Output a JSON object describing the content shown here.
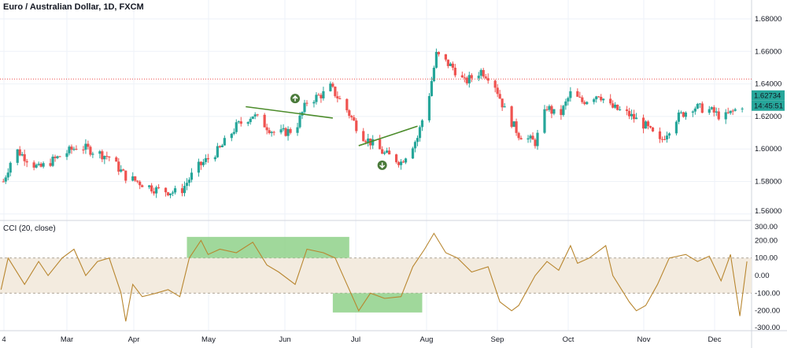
{
  "header": {
    "title": "Euro / Australian Dollar, 1D, FXCM"
  },
  "indicator": {
    "title": "CCI (20, close)"
  },
  "colors": {
    "up": "#26a69a",
    "down": "#ef5350",
    "cci_line": "#b8862f",
    "band_fill": "#f3ebdf",
    "highlight": "#8fd18a",
    "trendline": "#4c8c2b",
    "hline": "#ef5350",
    "arrow": "#4a7a3a",
    "grid": "#eef2f8"
  },
  "price_label": {
    "value": "1.62734",
    "countdown": "14:45:51"
  },
  "chart_data": [
    {
      "type": "candlestick",
      "title": "Euro / Australian Dollar, 1D, FXCM",
      "x_ticks": [
        "4",
        "Mar",
        "Apr",
        "May",
        "Jun",
        "Jul",
        "Aug",
        "Sep",
        "Oct",
        "Nov",
        "Dec"
      ],
      "y_ticks": [
        "1.68000",
        "1.66000",
        "1.64000",
        "1.62000",
        "1.60000",
        "1.58000",
        "1.56000"
      ],
      "ylim": [
        1.555,
        1.688
      ],
      "grid": true,
      "close_path": [
        [
          "Feb 2",
          1.58
        ],
        [
          "Feb 7",
          1.6
        ],
        [
          "Feb 17",
          1.588
        ],
        [
          "Mar 6",
          1.602
        ],
        [
          "Mar 19",
          1.595
        ],
        [
          "Mar 26",
          1.583
        ],
        [
          "Apr 8",
          1.575
        ],
        [
          "Apr 18",
          1.573
        ],
        [
          "Apr 25",
          1.588
        ],
        [
          "May 5",
          1.6
        ],
        [
          "May 12",
          1.614
        ],
        [
          "May 19",
          1.621
        ],
        [
          "May 29",
          1.609
        ],
        [
          "Jun 6",
          1.612
        ],
        [
          "Jun 11",
          1.629
        ],
        [
          "Jun 18",
          1.634
        ],
        [
          "Jun 21",
          1.638
        ],
        [
          "Jun 28",
          1.624
        ],
        [
          "Jul 4",
          1.609
        ],
        [
          "Jul 14",
          1.597
        ],
        [
          "Jul 21",
          1.592
        ],
        [
          "Jul 28",
          1.607
        ],
        [
          "Aug 2",
          1.634
        ],
        [
          "Aug 5",
          1.658
        ],
        [
          "Aug 12",
          1.65
        ],
        [
          "Aug 17",
          1.641
        ],
        [
          "Aug 24",
          1.648
        ],
        [
          "Aug 29",
          1.643
        ],
        [
          "Sep 3",
          1.624
        ],
        [
          "Sep 9",
          1.609
        ],
        [
          "Sep 16",
          1.604
        ],
        [
          "Sep 21",
          1.626
        ],
        [
          "Sep 26",
          1.619
        ],
        [
          "Oct 1",
          1.634
        ],
        [
          "Oct 6",
          1.629
        ],
        [
          "Oct 13",
          1.634
        ],
        [
          "Oct 18",
          1.626
        ],
        [
          "Oct 26",
          1.621
        ],
        [
          "Nov 2",
          1.614
        ],
        [
          "Nov 8",
          1.604
        ],
        [
          "Nov 15",
          1.619
        ],
        [
          "Nov 22",
          1.626
        ],
        [
          "Nov 29",
          1.624
        ],
        [
          "Dec 5",
          1.619
        ],
        [
          "Dec 13",
          1.627
        ]
      ],
      "last_price": 1.62734,
      "horizontal_line": 1.643,
      "trendlines": [
        {
          "from": [
            "May 16",
            1.626
          ],
          "to": [
            "Jun 22",
            1.619
          ]
        },
        {
          "from": [
            "Jul 3",
            1.602
          ],
          "to": [
            "Jul 28",
            1.614
          ]
        }
      ],
      "markers": [
        {
          "date": "Jun 6",
          "price": 1.631,
          "direction": "up"
        },
        {
          "date": "Jul 13",
          "price": 1.59,
          "direction": "down"
        }
      ]
    },
    {
      "type": "line",
      "title": "CCI (20, close)",
      "y_ticks": [
        "300.00",
        "200.00",
        "100.00",
        "0.00",
        "-100.00",
        "-200.00",
        "-300.00"
      ],
      "ylim": [
        -300,
        300
      ],
      "band": [
        -100,
        100
      ],
      "highlights": [
        {
          "from": "Apr 21",
          "to": "Jun 29",
          "y_range": [
            100,
            220
          ]
        },
        {
          "from": "Jun 22",
          "to": "Jul 30",
          "y_range": [
            -210,
            -100
          ]
        }
      ],
      "values": [
        [
          "Feb 1",
          -80
        ],
        [
          "Feb 4",
          100
        ],
        [
          "Feb 11",
          -50
        ],
        [
          "Feb 17",
          80
        ],
        [
          "Feb 21",
          0
        ],
        [
          "Feb 27",
          100
        ],
        [
          "Mar 4",
          150
        ],
        [
          "Mar 9",
          0
        ],
        [
          "Mar 14",
          80
        ],
        [
          "Mar 19",
          100
        ],
        [
          "Mar 24",
          -100
        ],
        [
          "Mar 26",
          -260
        ],
        [
          "Mar 29",
          -50
        ],
        [
          "Apr 2",
          -120
        ],
        [
          "Apr 8",
          -100
        ],
        [
          "Apr 13",
          -80
        ],
        [
          "Apr 18",
          -120
        ],
        [
          "Apr 22",
          100
        ],
        [
          "Apr 27",
          200
        ],
        [
          "Apr 30",
          120
        ],
        [
          "May 5",
          150
        ],
        [
          "May 12",
          130
        ],
        [
          "May 19",
          190
        ],
        [
          "May 25",
          60
        ],
        [
          "May 30",
          20
        ],
        [
          "Jun 6",
          -50
        ],
        [
          "Jun 11",
          150
        ],
        [
          "Jun 18",
          130
        ],
        [
          "Jun 23",
          100
        ],
        [
          "Jun 28",
          -50
        ],
        [
          "Jul 3",
          -200
        ],
        [
          "Jul 8",
          -100
        ],
        [
          "Jul 14",
          -130
        ],
        [
          "Jul 21",
          -120
        ],
        [
          "Jul 26",
          50
        ],
        [
          "Jul 31",
          150
        ],
        [
          "Aug 4",
          240
        ],
        [
          "Aug 9",
          130
        ],
        [
          "Aug 14",
          100
        ],
        [
          "Aug 20",
          20
        ],
        [
          "Aug 27",
          50
        ],
        [
          "Sep 1",
          -150
        ],
        [
          "Sep 6",
          -200
        ],
        [
          "Sep 9",
          -170
        ],
        [
          "Sep 16",
          0
        ],
        [
          "Sep 21",
          80
        ],
        [
          "Sep 26",
          30
        ],
        [
          "Oct 1",
          170
        ],
        [
          "Oct 4",
          70
        ],
        [
          "Oct 9",
          100
        ],
        [
          "Oct 16",
          170
        ],
        [
          "Oct 19",
          0
        ],
        [
          "Oct 26",
          -150
        ],
        [
          "Oct 29",
          -200
        ],
        [
          "Nov 2",
          -170
        ],
        [
          "Nov 7",
          -50
        ],
        [
          "Nov 12",
          100
        ],
        [
          "Nov 19",
          120
        ],
        [
          "Nov 24",
          80
        ],
        [
          "Nov 29",
          110
        ],
        [
          "Dec 4",
          -30
        ],
        [
          "Dec 8",
          120
        ],
        [
          "Dec 12",
          -230
        ],
        [
          "Dec 15",
          80
        ]
      ]
    }
  ]
}
